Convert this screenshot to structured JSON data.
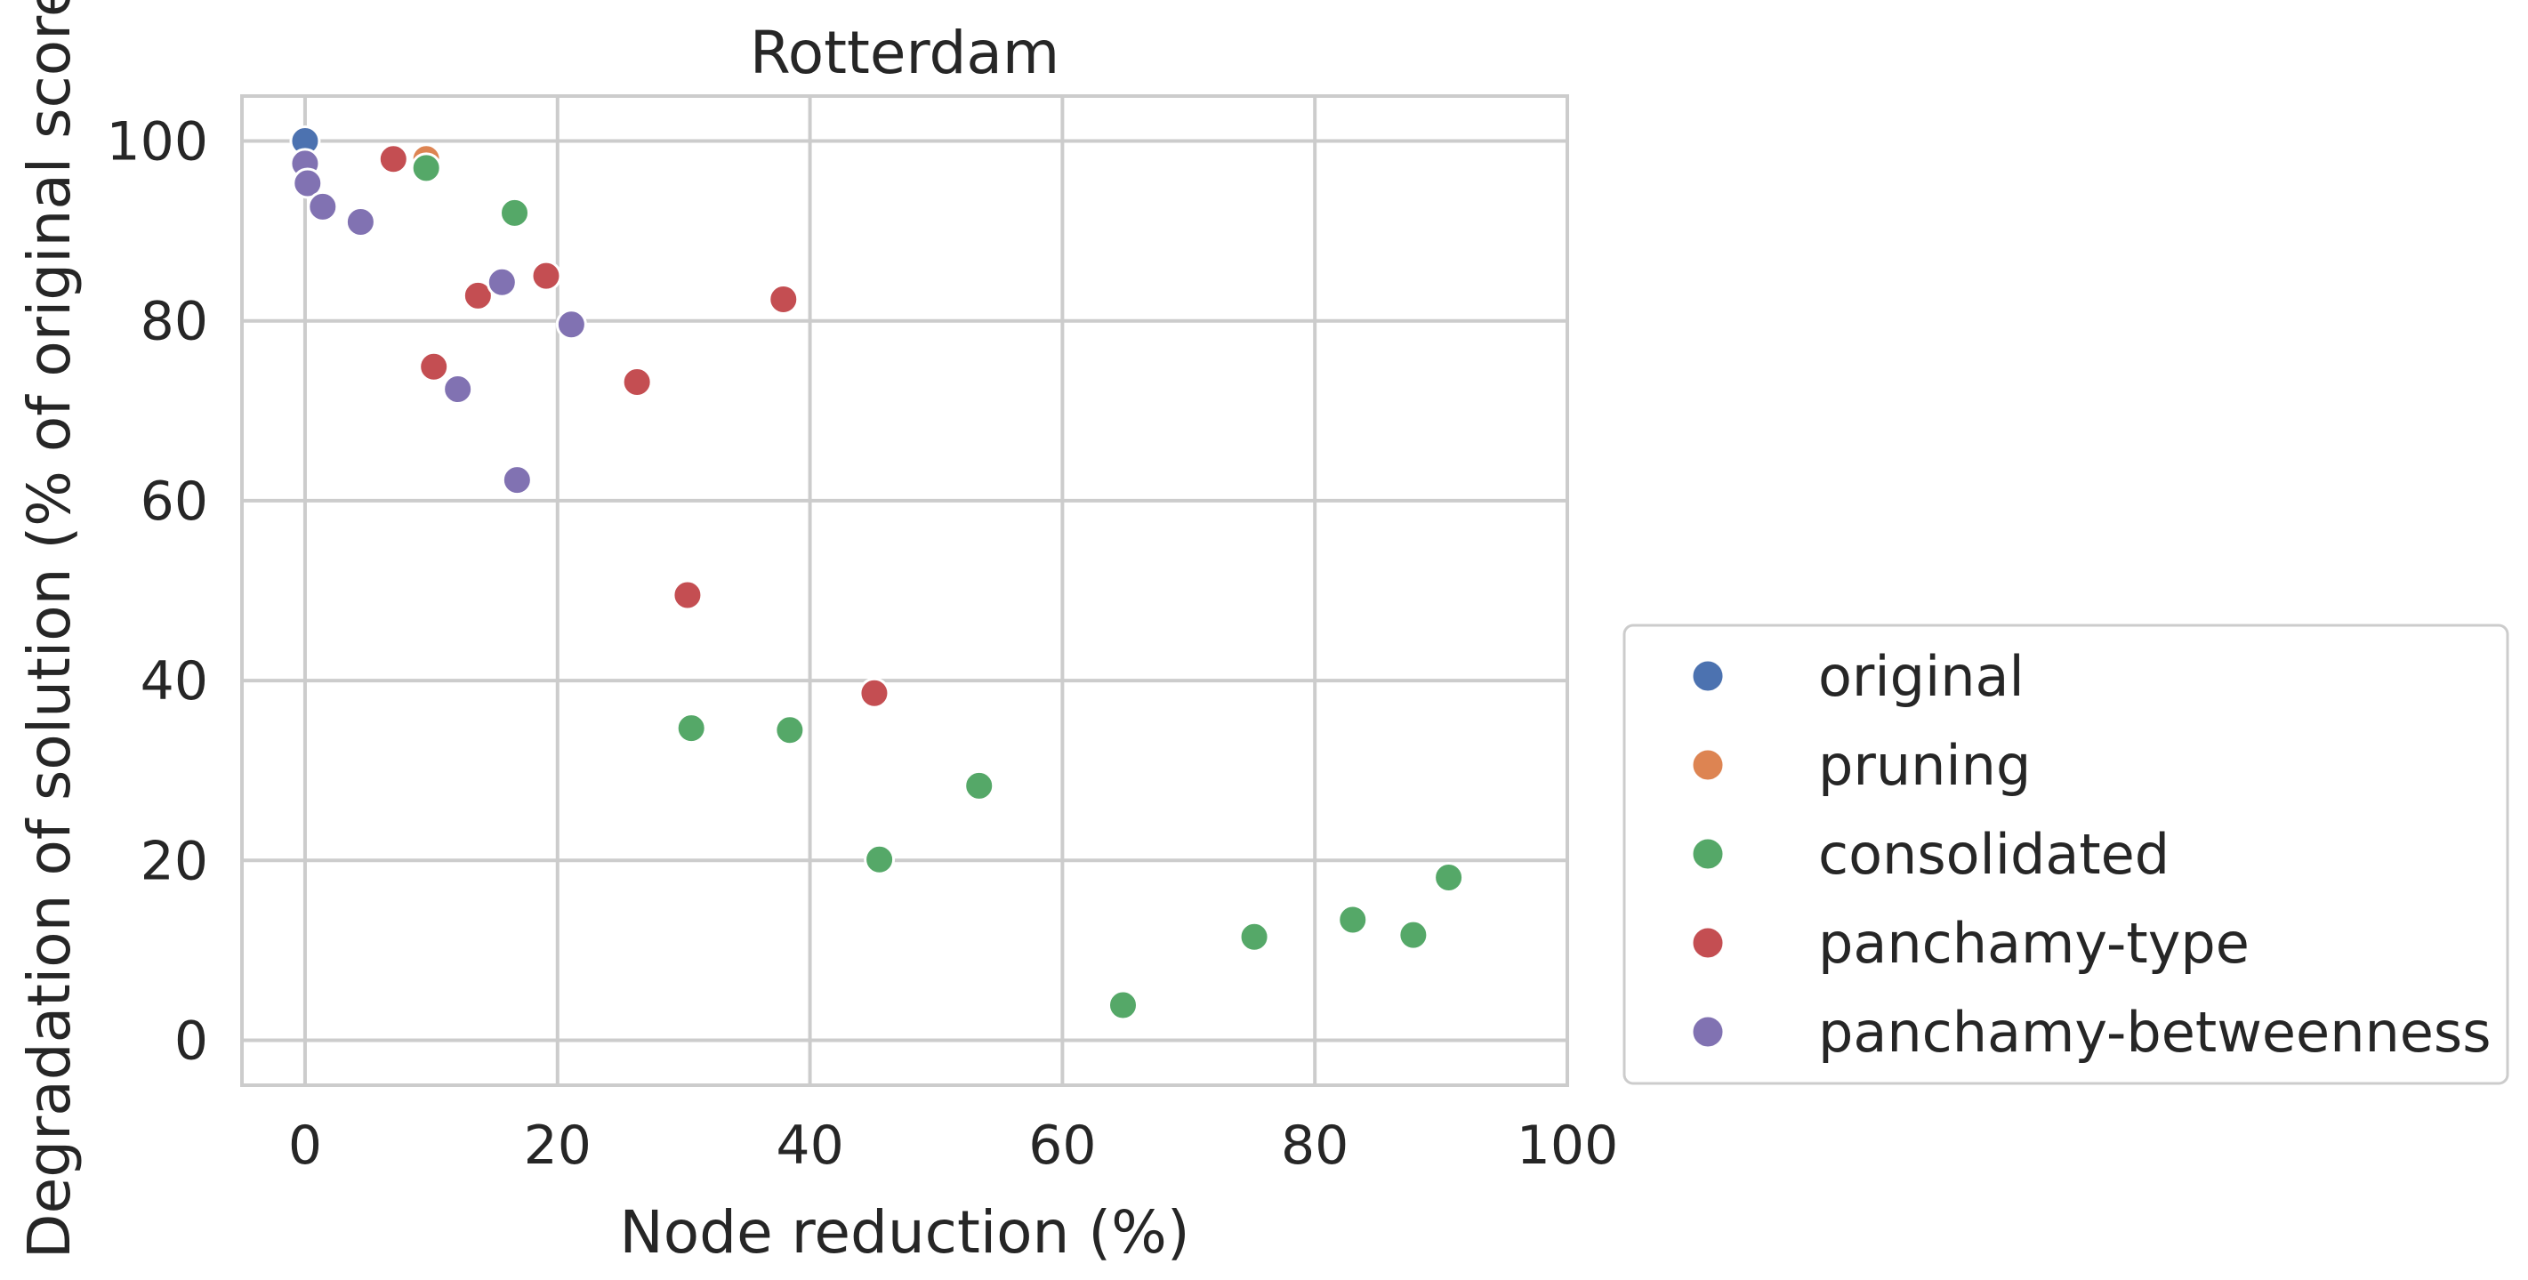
{
  "chart_data": {
    "type": "scatter",
    "title": "Rotterdam",
    "xlabel": "Node reduction (%)",
    "ylabel": "Degradation of solution (% of original score)",
    "xlim": [
      -5,
      100
    ],
    "ylim": [
      -5,
      105
    ],
    "xticks": [
      0,
      20,
      40,
      60,
      80,
      100
    ],
    "yticks": [
      0,
      20,
      40,
      60,
      80,
      100
    ],
    "grid": true,
    "legend_position": "lower right, outside plot",
    "series": [
      {
        "name": "original",
        "color": "#4c72b0",
        "points": [
          [
            0,
            100
          ]
        ]
      },
      {
        "name": "pruning",
        "color": "#dd8452",
        "points": [
          [
            9.6,
            98
          ]
        ]
      },
      {
        "name": "consolidated",
        "color": "#55a868",
        "points": [
          [
            9.6,
            97
          ],
          [
            16.6,
            92
          ],
          [
            30.6,
            34.7
          ],
          [
            38.4,
            34.5
          ],
          [
            45.5,
            20.1
          ],
          [
            53.4,
            28.3
          ],
          [
            64.8,
            3.9
          ],
          [
            75.2,
            11.5
          ],
          [
            83,
            13.4
          ],
          [
            87.8,
            11.7
          ],
          [
            90.6,
            18.1
          ]
        ]
      },
      {
        "name": "panchamy-type",
        "color": "#c44e52",
        "points": [
          [
            7,
            98
          ],
          [
            10.2,
            74.9
          ],
          [
            13.7,
            82.8
          ],
          [
            19.1,
            85
          ],
          [
            26.3,
            73.2
          ],
          [
            30.3,
            49.5
          ],
          [
            37.9,
            82.4
          ],
          [
            45.1,
            38.6
          ]
        ]
      },
      {
        "name": "panchamy-betweenness",
        "color": "#8172b2",
        "points": [
          [
            0,
            97.5
          ],
          [
            0.2,
            95.3
          ],
          [
            1.4,
            92.7
          ],
          [
            4.4,
            91
          ],
          [
            12.1,
            72.4
          ],
          [
            15.6,
            84.3
          ],
          [
            16.8,
            62.3
          ],
          [
            21.1,
            79.6
          ]
        ]
      }
    ]
  }
}
